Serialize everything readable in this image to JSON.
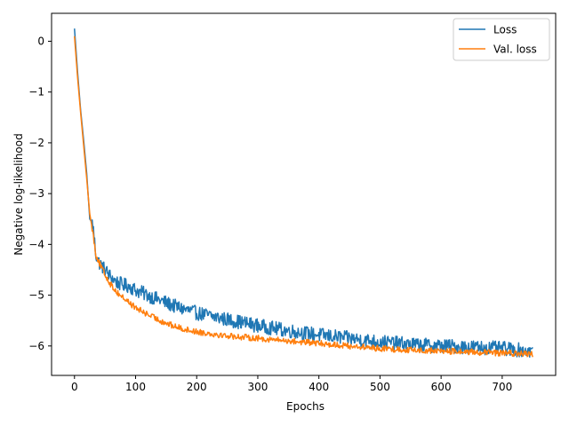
{
  "chart_data": {
    "type": "line",
    "title": "",
    "xlabel": "Epochs",
    "ylabel": "Negative log-likelihood",
    "xlim": [
      -37.5,
      787.5
    ],
    "ylim": [
      -6.58,
      0.55
    ],
    "xticks": [
      0,
      100,
      200,
      300,
      400,
      500,
      600,
      700
    ],
    "yticks": [
      0,
      -1,
      -2,
      -3,
      -4,
      -5,
      -6
    ],
    "ytick_labels": [
      "0",
      "−1",
      "−2",
      "−3",
      "−4",
      "−5",
      "−6"
    ],
    "grid": false,
    "legend_position": "top-right",
    "series": [
      {
        "name": "Loss",
        "color": "#1f77b4",
        "points": [
          [
            0,
            0.25
          ],
          [
            5,
            -0.6
          ],
          [
            10,
            -1.35
          ],
          [
            15,
            -1.95
          ],
          [
            20,
            -2.6
          ],
          [
            25,
            -3.5
          ],
          [
            30,
            -3.6
          ],
          [
            35,
            -4.2
          ],
          [
            40,
            -4.35
          ],
          [
            50,
            -4.5
          ],
          [
            60,
            -4.65
          ],
          [
            70,
            -4.75
          ],
          [
            80,
            -4.8
          ],
          [
            90,
            -4.82
          ],
          [
            100,
            -4.9
          ],
          [
            120,
            -5.0
          ],
          [
            140,
            -5.1
          ],
          [
            160,
            -5.2
          ],
          [
            180,
            -5.28
          ],
          [
            200,
            -5.35
          ],
          [
            250,
            -5.48
          ],
          [
            300,
            -5.6
          ],
          [
            350,
            -5.7
          ],
          [
            400,
            -5.78
          ],
          [
            450,
            -5.85
          ],
          [
            500,
            -5.92
          ],
          [
            550,
            -5.97
          ],
          [
            600,
            -6.0
          ],
          [
            650,
            -6.02
          ],
          [
            700,
            -6.05
          ],
          [
            750,
            -6.1
          ]
        ],
        "noise": 0.14
      },
      {
        "name": "Val. loss",
        "color": "#ff7f0e",
        "points": [
          [
            0,
            0.1
          ],
          [
            5,
            -0.7
          ],
          [
            10,
            -1.4
          ],
          [
            15,
            -2.05
          ],
          [
            20,
            -2.7
          ],
          [
            25,
            -3.4
          ],
          [
            30,
            -3.75
          ],
          [
            35,
            -4.2
          ],
          [
            40,
            -4.35
          ],
          [
            50,
            -4.6
          ],
          [
            60,
            -4.8
          ],
          [
            70,
            -4.95
          ],
          [
            80,
            -5.05
          ],
          [
            90,
            -5.15
          ],
          [
            100,
            -5.25
          ],
          [
            120,
            -5.38
          ],
          [
            140,
            -5.5
          ],
          [
            160,
            -5.6
          ],
          [
            180,
            -5.67
          ],
          [
            200,
            -5.72
          ],
          [
            250,
            -5.8
          ],
          [
            300,
            -5.85
          ],
          [
            350,
            -5.9
          ],
          [
            400,
            -5.95
          ],
          [
            450,
            -6.0
          ],
          [
            500,
            -6.05
          ],
          [
            550,
            -6.08
          ],
          [
            600,
            -6.1
          ],
          [
            650,
            -6.12
          ],
          [
            700,
            -6.14
          ],
          [
            750,
            -6.16
          ]
        ],
        "noise": 0.06
      }
    ]
  }
}
